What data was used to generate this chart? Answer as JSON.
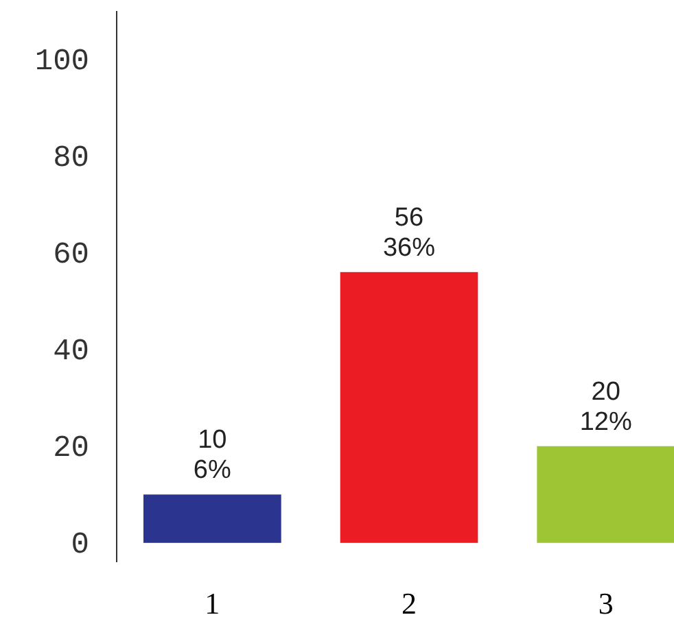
{
  "chart_data": {
    "type": "bar",
    "categories": [
      "1",
      "2",
      "3"
    ],
    "values": [
      10,
      56,
      20
    ],
    "colors": [
      "#2b3590",
      "#ec1c24",
      "#9dc534"
    ],
    "value_labels": [
      "10\n6%",
      "56\n36%",
      "20\n12%"
    ],
    "ylim": [
      -4,
      110
    ],
    "yticks": [
      0,
      20,
      40,
      60,
      80,
      100
    ],
    "grid": false
  }
}
